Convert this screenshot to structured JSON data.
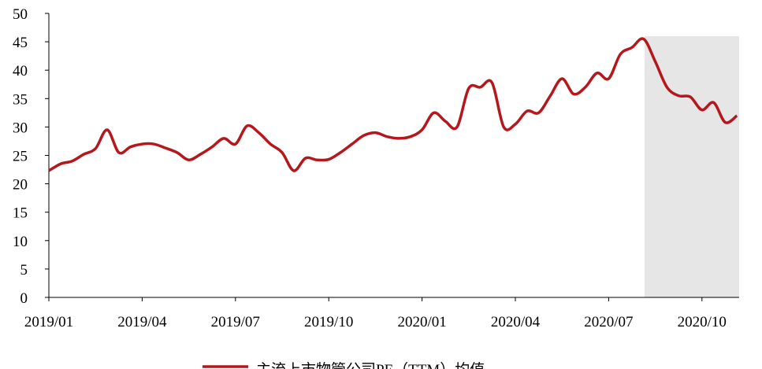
{
  "chart_data": {
    "type": "line",
    "categories": [
      "2019/01",
      null,
      null,
      null,
      null,
      null,
      null,
      null,
      "2019/04",
      null,
      null,
      null,
      null,
      null,
      null,
      null,
      "2019/07",
      null,
      null,
      null,
      null,
      null,
      null,
      null,
      "2019/10",
      null,
      null,
      null,
      null,
      null,
      null,
      null,
      "2020/01",
      null,
      null,
      null,
      null,
      null,
      null,
      null,
      "2020/04",
      null,
      null,
      null,
      null,
      null,
      null,
      null,
      "2020/07",
      null,
      null,
      null,
      null,
      null,
      null,
      null,
      "2020/10",
      null,
      null,
      null
    ],
    "series": [
      {
        "name": "主流上市物管公司PE（TTM）均值",
        "color": "#b5171c",
        "values": [
          22.3,
          23.5,
          24,
          25.2,
          26.2,
          29.5,
          25.5,
          26.5,
          27,
          27,
          26.3,
          25.5,
          24.2,
          25.2,
          26.5,
          28,
          27,
          30.2,
          29,
          27,
          25.5,
          22.3,
          24.5,
          24.2,
          24.3,
          25.5,
          27,
          28.5,
          29,
          28.3,
          28,
          28.3,
          29.5,
          32.5,
          31,
          30,
          36.8,
          37,
          37.8,
          30,
          30.5,
          32.8,
          32.5,
          35.5,
          38.5,
          35.8,
          37,
          39.5,
          38.5,
          42.8,
          44,
          45.5,
          41.5,
          37,
          35.5,
          35.3,
          33,
          34.3,
          30.8,
          32
        ]
      }
    ],
    "ylim": [
      0,
      50
    ],
    "yticks": [
      0,
      5,
      10,
      15,
      20,
      25,
      30,
      35,
      40,
      45,
      50
    ]
  }
}
